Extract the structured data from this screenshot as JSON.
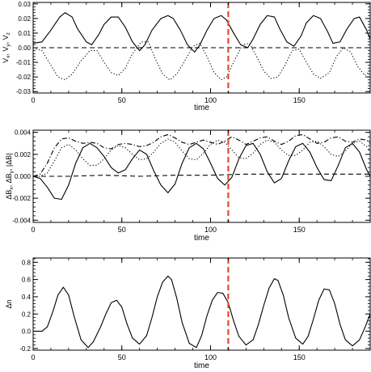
{
  "chart_data": [
    {
      "type": "line",
      "xlabel": "time",
      "ylabel": "Vₓ, Vᵧ, Vₑ",
      "ylabel_parts": [
        "V",
        "x",
        ", V",
        "y",
        ", V",
        "z"
      ],
      "xlim": [
        0,
        190
      ],
      "ylim": [
        -0.031,
        0.031
      ],
      "xticks": [
        "0",
        "50",
        "100",
        "150"
      ],
      "yticks": [
        "-0.03",
        "-0.02",
        "-0.01",
        "0.00",
        "0.01",
        "0.02",
        "0.03"
      ],
      "series": [
        {
          "style": "solid",
          "x": [
            0,
            5,
            10,
            15,
            18,
            22,
            25,
            30,
            33,
            37,
            40,
            44,
            48,
            52,
            56,
            60,
            63,
            67,
            72,
            76,
            79,
            83,
            87,
            91,
            94,
            98,
            102,
            106,
            109,
            113,
            117,
            121,
            124,
            128,
            132,
            136,
            139,
            143,
            147,
            151,
            154,
            158,
            162,
            166,
            169,
            173,
            177,
            181,
            184,
            188,
            190
          ],
          "y": [
            0.003,
            0.004,
            0.012,
            0.021,
            0.024,
            0.021,
            0.013,
            0.004,
            0.002,
            0.009,
            0.016,
            0.021,
            0.021,
            0.014,
            0.004,
            -0.002,
            0.002,
            0.012,
            0.02,
            0.022,
            0.02,
            0.012,
            0.002,
            -0.003,
            0.002,
            0.012,
            0.02,
            0.022,
            0.019,
            0.01,
            0.002,
            0.0,
            0.006,
            0.016,
            0.022,
            0.021,
            0.013,
            0.004,
            0.001,
            0.008,
            0.017,
            0.022,
            0.02,
            0.011,
            0.003,
            0.004,
            0.013,
            0.02,
            0.021,
            0.012,
            0.006
          ]
        },
        {
          "style": "dotted",
          "x": [
            0,
            5,
            10,
            14,
            18,
            22,
            27,
            32,
            36,
            40,
            44,
            48,
            52,
            56,
            61,
            65,
            69,
            73,
            77,
            81,
            86,
            90,
            94,
            98,
            102,
            106,
            109,
            113,
            118,
            122,
            126,
            130,
            134,
            138,
            142,
            146,
            150,
            154,
            158,
            162,
            167,
            171,
            175,
            179,
            183,
            187,
            190
          ],
          "y": [
            0.0,
            -0.002,
            -0.012,
            -0.02,
            -0.022,
            -0.018,
            -0.009,
            -0.002,
            -0.002,
            -0.01,
            -0.017,
            -0.019,
            -0.014,
            -0.004,
            0.004,
            0.004,
            -0.008,
            -0.018,
            -0.022,
            -0.018,
            -0.008,
            0.001,
            0.003,
            -0.006,
            -0.017,
            -0.022,
            -0.02,
            -0.01,
            0.002,
            0.003,
            -0.006,
            -0.016,
            -0.021,
            -0.02,
            -0.012,
            -0.002,
            -0.001,
            -0.01,
            -0.018,
            -0.021,
            -0.017,
            -0.006,
            0.0,
            -0.003,
            -0.013,
            -0.019,
            -0.016
          ]
        },
        {
          "style": "dashed",
          "x": [
            0,
            190
          ],
          "y": [
            0.0,
            0.0
          ]
        }
      ],
      "marker_x": 110
    },
    {
      "type": "line",
      "xlabel": "time",
      "ylabel": "ΔBₓ, ΔBᵧ, |ΔB|",
      "ylabel_parts": [
        "ΔB",
        "x",
        ", ΔB",
        "y",
        ", |ΔB|",
        ""
      ],
      "xlim": [
        0,
        190
      ],
      "ylim": [
        -0.0042,
        0.0042
      ],
      "xticks": [
        "0",
        "50",
        "100",
        "150"
      ],
      "yticks": [
        "-0.004",
        "-0.002",
        "0.000",
        "0.002",
        "0.004"
      ],
      "series": [
        {
          "style": "solid",
          "x": [
            0,
            4,
            8,
            12,
            16,
            20,
            24,
            28,
            32,
            36,
            40,
            44,
            48,
            52,
            56,
            60,
            64,
            68,
            72,
            76,
            80,
            84,
            88,
            92,
            96,
            100,
            104,
            108,
            112,
            116,
            120,
            124,
            128,
            132,
            136,
            140,
            144,
            148,
            152,
            156,
            160,
            164,
            168,
            172,
            176,
            180,
            184,
            188,
            190
          ],
          "y": [
            0.0,
            -0.0002,
            -0.001,
            -0.002,
            -0.0021,
            -0.0008,
            0.0012,
            0.0026,
            0.003,
            0.0026,
            0.0018,
            0.0008,
            0.0003,
            0.0006,
            0.0016,
            0.0024,
            0.002,
            0.0005,
            -0.0008,
            -0.0015,
            -0.0007,
            0.0012,
            0.0026,
            0.003,
            0.0025,
            0.0012,
            -0.0002,
            -0.0008,
            -0.0001,
            0.0016,
            0.0028,
            0.003,
            0.002,
            0.0004,
            -0.0006,
            -0.0002,
            0.0014,
            0.0027,
            0.003,
            0.0022,
            0.0008,
            -0.0003,
            -0.0004,
            0.001,
            0.0026,
            0.003,
            0.0022,
            0.0006,
            0.0
          ]
        },
        {
          "style": "dotted",
          "x": [
            0,
            4,
            8,
            12,
            16,
            20,
            24,
            28,
            32,
            36,
            40,
            44,
            48,
            52,
            56,
            60,
            64,
            68,
            72,
            76,
            80,
            84,
            88,
            92,
            96,
            100,
            104,
            108,
            112,
            116,
            120,
            124,
            128,
            132,
            136,
            140,
            144,
            148,
            152,
            156,
            160,
            164,
            168,
            172,
            176,
            180,
            184,
            188,
            190
          ],
          "y": [
            0.0,
            0.0,
            0.0003,
            0.0014,
            0.0026,
            0.0029,
            0.0024,
            0.0016,
            0.001,
            0.001,
            0.0016,
            0.0024,
            0.0028,
            0.0026,
            0.002,
            0.0015,
            0.0016,
            0.0022,
            0.003,
            0.0034,
            0.0031,
            0.0023,
            0.0016,
            0.0015,
            0.0021,
            0.0029,
            0.0033,
            0.0031,
            0.0024,
            0.0017,
            0.0016,
            0.0021,
            0.0029,
            0.0033,
            0.0031,
            0.0024,
            0.0019,
            0.0019,
            0.0024,
            0.0031,
            0.0032,
            0.0027,
            0.002,
            0.0018,
            0.0023,
            0.003,
            0.0032,
            0.0027,
            0.0023
          ]
        },
        {
          "style": "dashdot",
          "x": [
            0,
            4,
            8,
            12,
            16,
            20,
            24,
            28,
            32,
            36,
            40,
            44,
            48,
            52,
            56,
            60,
            64,
            68,
            72,
            76,
            80,
            84,
            88,
            92,
            96,
            100,
            104,
            108,
            112,
            116,
            120,
            124,
            128,
            132,
            136,
            140,
            144,
            148,
            152,
            156,
            160,
            164,
            168,
            172,
            176,
            180,
            184,
            188,
            190
          ],
          "y": [
            0.0,
            0.0002,
            0.0012,
            0.0026,
            0.0034,
            0.0035,
            0.0032,
            0.003,
            0.0031,
            0.003,
            0.0026,
            0.0025,
            0.0029,
            0.003,
            0.0029,
            0.0027,
            0.0028,
            0.0031,
            0.0036,
            0.0038,
            0.0035,
            0.0031,
            0.0029,
            0.0031,
            0.0033,
            0.0031,
            0.0029,
            0.0032,
            0.0036,
            0.0033,
            0.0029,
            0.0032,
            0.0035,
            0.0036,
            0.0032,
            0.0029,
            0.0032,
            0.0037,
            0.0038,
            0.0034,
            0.003,
            0.0031,
            0.0035,
            0.0036,
            0.0032,
            0.0031,
            0.0034,
            0.0033,
            0.003
          ]
        },
        {
          "style": "dashed",
          "x": [
            0,
            20,
            40,
            60,
            80,
            100,
            120,
            140,
            160,
            180,
            190
          ],
          "y": [
            0.0,
            0.0,
            0.0001,
            0.0,
            0.0001,
            0.0001,
            0.0002,
            0.0002,
            0.0002,
            0.0002,
            0.0002
          ]
        }
      ],
      "marker_x": 110
    },
    {
      "type": "line",
      "xlabel": "time",
      "ylabel": "Δn",
      "ylabel_parts": [
        "Δn"
      ],
      "xlim": [
        0,
        190
      ],
      "ylim": [
        -0.22,
        0.85
      ],
      "xticks": [
        "0",
        "50",
        "100",
        "150"
      ],
      "yticks": [
        "-0.2",
        "0.0",
        "0.2",
        "0.4",
        "0.6",
        "0.8"
      ],
      "series": [
        {
          "style": "solid",
          "x": [
            0,
            5,
            8,
            11,
            14,
            17,
            20,
            23,
            27,
            31,
            34,
            38,
            41,
            44,
            47,
            50,
            53,
            56,
            60,
            64,
            67,
            70,
            73,
            76,
            78,
            81,
            84,
            88,
            92,
            95,
            98,
            101,
            104,
            107,
            110,
            113,
            116,
            120,
            124,
            127,
            130,
            133,
            136,
            138,
            141,
            144,
            148,
            152,
            155,
            158,
            161,
            164,
            167,
            170,
            173,
            176,
            180,
            184,
            187,
            190
          ],
          "y": [
            0.0,
            0.0,
            0.05,
            0.22,
            0.42,
            0.51,
            0.42,
            0.18,
            -0.1,
            -0.19,
            -0.12,
            0.05,
            0.2,
            0.33,
            0.36,
            0.28,
            0.08,
            -0.08,
            -0.15,
            -0.05,
            0.16,
            0.4,
            0.57,
            0.64,
            0.6,
            0.38,
            0.1,
            -0.14,
            -0.19,
            -0.05,
            0.18,
            0.36,
            0.45,
            0.44,
            0.33,
            0.12,
            -0.06,
            -0.16,
            -0.1,
            0.08,
            0.3,
            0.5,
            0.61,
            0.59,
            0.42,
            0.16,
            -0.08,
            -0.15,
            -0.06,
            0.14,
            0.36,
            0.49,
            0.48,
            0.32,
            0.08,
            -0.1,
            -0.17,
            -0.1,
            0.04,
            0.2
          ]
        }
      ],
      "marker_x": 110
    }
  ],
  "colors": {
    "axis": "#000000",
    "curve": "#000000",
    "marker": "#e8472a",
    "background": "#ffffff"
  }
}
